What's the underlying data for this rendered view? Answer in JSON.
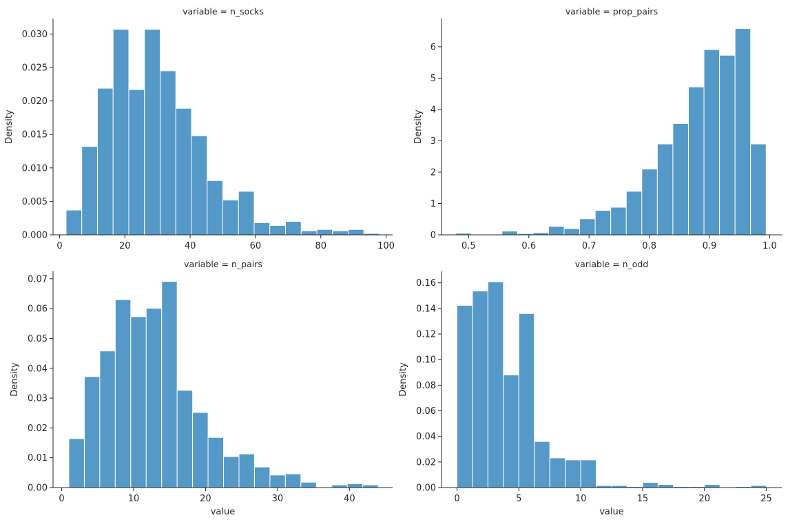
{
  "chart_data": [
    {
      "type": "bar",
      "title": "variable = n_socks",
      "xlabel": "",
      "ylabel": "Density",
      "xlim": [
        -2,
        102
      ],
      "ylim": [
        0,
        0.0323
      ],
      "xticks": [
        0,
        20,
        40,
        60,
        80,
        100
      ],
      "yticks": [
        0.0,
        0.005,
        0.01,
        0.015,
        0.02,
        0.025,
        0.03
      ],
      "ytick_labels": [
        "0.000",
        "0.005",
        "0.010",
        "0.015",
        "0.020",
        "0.025",
        "0.030"
      ],
      "bin_start": 2,
      "bin_width": 4.8,
      "values": [
        0.0037,
        0.0132,
        0.0219,
        0.0307,
        0.0217,
        0.0307,
        0.0245,
        0.0189,
        0.0148,
        0.0081,
        0.0052,
        0.0065,
        0.0018,
        0.0014,
        0.002,
        0.0006,
        0.0008,
        0.0006,
        0.0008,
        0.0002
      ],
      "color": "#5499c7"
    },
    {
      "type": "bar",
      "title": "variable = prop_pairs",
      "xlabel": "",
      "ylabel": "Density",
      "xlim": [
        0.455,
        1.02
      ],
      "ylim": [
        0,
        6.9
      ],
      "xticks": [
        0.5,
        0.6,
        0.7,
        0.8,
        0.9,
        1.0
      ],
      "xtick_labels": [
        "0.5",
        "0.6",
        "0.7",
        "0.8",
        "0.9",
        "1.0"
      ],
      "yticks": [
        0,
        1,
        2,
        3,
        4,
        5,
        6
      ],
      "ytick_labels": [
        "0",
        "1",
        "2",
        "3",
        "4",
        "5",
        "6"
      ],
      "bin_start": 0.478,
      "bin_width": 0.0258,
      "values": [
        0.05,
        0.02,
        0.0,
        0.12,
        0.04,
        0.07,
        0.27,
        0.2,
        0.51,
        0.78,
        0.88,
        1.39,
        2.1,
        2.9,
        3.55,
        4.72,
        5.91,
        5.73,
        6.58,
        2.9
      ],
      "color": "#5499c7"
    },
    {
      "type": "bar",
      "title": "variable = n_pairs",
      "xlabel": "value",
      "ylabel": "Density",
      "xlim": [
        -1.2,
        46.0
      ],
      "ylim": [
        0,
        0.0725
      ],
      "xticks": [
        0,
        10,
        20,
        30,
        40
      ],
      "yticks": [
        0.0,
        0.01,
        0.02,
        0.03,
        0.04,
        0.05,
        0.06,
        0.07
      ],
      "ytick_labels": [
        "0.00",
        "0.01",
        "0.02",
        "0.03",
        "0.04",
        "0.05",
        "0.06",
        "0.07"
      ],
      "bin_start": 1,
      "bin_width": 2.15,
      "values": [
        0.0164,
        0.0372,
        0.0458,
        0.063,
        0.0573,
        0.0601,
        0.0691,
        0.0326,
        0.0252,
        0.0168,
        0.0104,
        0.0113,
        0.0069,
        0.0042,
        0.0046,
        0.0018,
        0.0002,
        0.0009,
        0.0013,
        0.0009
      ],
      "color": "#5499c7"
    },
    {
      "type": "bar",
      "title": "variable = n_odd",
      "xlabel": "value",
      "ylabel": "Density",
      "xlim": [
        -1.25,
        26.25
      ],
      "ylim": [
        0,
        0.169
      ],
      "xticks": [
        0,
        5,
        10,
        15,
        20,
        25
      ],
      "yticks": [
        0.0,
        0.02,
        0.04,
        0.06,
        0.08,
        0.1,
        0.12,
        0.14,
        0.16
      ],
      "ytick_labels": [
        "0.00",
        "0.02",
        "0.04",
        "0.06",
        "0.08",
        "0.10",
        "0.12",
        "0.14",
        "0.16"
      ],
      "bin_start": 0,
      "bin_width": 1.25,
      "values": [
        0.1424,
        0.1536,
        0.1608,
        0.088,
        0.136,
        0.036,
        0.0232,
        0.0216,
        0.0216,
        0.0016,
        0.0016,
        0.0008,
        0.004,
        0.0024,
        0.0008,
        0.0008,
        0.0024,
        0.0,
        0.0008,
        0.0016
      ],
      "color": "#5499c7"
    }
  ]
}
